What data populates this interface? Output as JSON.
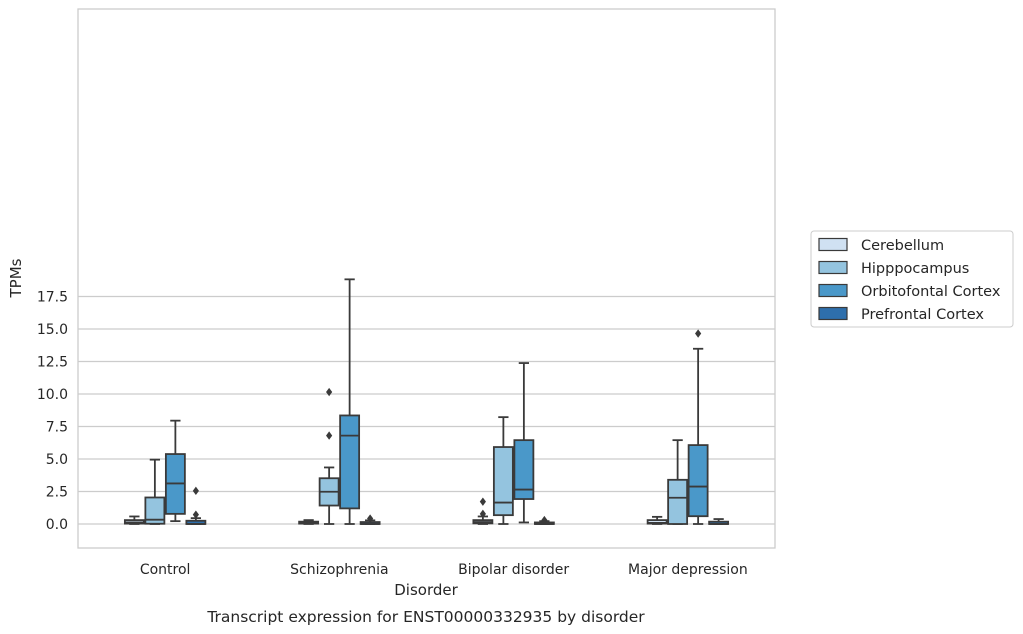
{
  "chart_data": {
    "type": "boxplot",
    "caption": "Transcript expression for ENST00000332935 by disorder",
    "xlabel": "Disorder",
    "ylabel": "TPMs",
    "ylim": [
      -0.9,
      19.7
    ],
    "yticks": [
      "0.0",
      "2.5",
      "5.0",
      "7.5",
      "10.0",
      "12.5",
      "15.0",
      "17.5"
    ],
    "categories": [
      "Control",
      "Schizophrenia",
      "Bipolar disorder",
      "Major depression"
    ],
    "grid": "horizontal",
    "legend_position": "right",
    "series": [
      {
        "name": "Cerebellum",
        "color": "#d0e1f2",
        "boxes": [
          {
            "whislo": 0.0,
            "q1": 0.03,
            "med": 0.12,
            "q3": 0.3,
            "whishi": 0.58,
            "fliers": []
          },
          {
            "whislo": 0.0,
            "q1": 0.03,
            "med": 0.12,
            "q3": 0.18,
            "whishi": 0.3,
            "fliers": []
          },
          {
            "whislo": 0.0,
            "q1": 0.05,
            "med": 0.15,
            "q3": 0.3,
            "whishi": 0.58,
            "fliers": [
              0.78,
              1.72
            ]
          },
          {
            "whislo": 0.0,
            "q1": 0.03,
            "med": 0.08,
            "q3": 0.3,
            "whishi": 0.55,
            "fliers": []
          }
        ]
      },
      {
        "name": "Hipppocampus",
        "color": "#94c4df",
        "boxes": [
          {
            "whislo": 0.0,
            "q1": 0.02,
            "med": 0.33,
            "q3": 2.04,
            "whishi": 4.95,
            "fliers": []
          },
          {
            "whislo": 0.0,
            "q1": 1.42,
            "med": 2.48,
            "q3": 3.52,
            "whishi": 4.35,
            "fliers": [
              6.8,
              10.15
            ]
          },
          {
            "whislo": 0.0,
            "q1": 0.68,
            "med": 1.65,
            "q3": 5.92,
            "whishi": 8.22,
            "fliers": []
          },
          {
            "whislo": 0.0,
            "q1": 0.0,
            "med": 2.02,
            "q3": 3.4,
            "whishi": 6.45,
            "fliers": []
          }
        ]
      },
      {
        "name": "Orbitofontal Cortex",
        "color": "#4a98c9",
        "boxes": [
          {
            "whislo": 0.22,
            "q1": 0.78,
            "med": 3.12,
            "q3": 5.38,
            "whishi": 7.95,
            "fliers": []
          },
          {
            "whislo": 0.0,
            "q1": 1.2,
            "med": 6.8,
            "q3": 8.35,
            "whishi": 18.82,
            "fliers": []
          },
          {
            "whislo": 0.12,
            "q1": 1.92,
            "med": 2.65,
            "q3": 6.45,
            "whishi": 12.38,
            "fliers": []
          },
          {
            "whislo": 0.0,
            "q1": 0.6,
            "med": 2.88,
            "q3": 6.07,
            "whishi": 13.48,
            "fliers": [
              14.65
            ]
          }
        ]
      },
      {
        "name": "Prefrontal Cortex",
        "color": "#2e6fac",
        "boxes": [
          {
            "whislo": 0.0,
            "q1": 0.0,
            "med": 0.0,
            "q3": 0.25,
            "whishi": 0.45,
            "fliers": [
              0.72,
              2.55
            ]
          },
          {
            "whislo": 0.0,
            "q1": 0.0,
            "med": 0.0,
            "q3": 0.15,
            "whishi": 0.28,
            "fliers": [
              0.42
            ]
          },
          {
            "whislo": 0.0,
            "q1": 0.0,
            "med": 0.0,
            "q3": 0.12,
            "whishi": 0.22,
            "fliers": [
              0.3
            ]
          },
          {
            "whislo": 0.0,
            "q1": 0.0,
            "med": 0.0,
            "q3": 0.18,
            "whishi": 0.38,
            "fliers": []
          }
        ]
      }
    ]
  }
}
